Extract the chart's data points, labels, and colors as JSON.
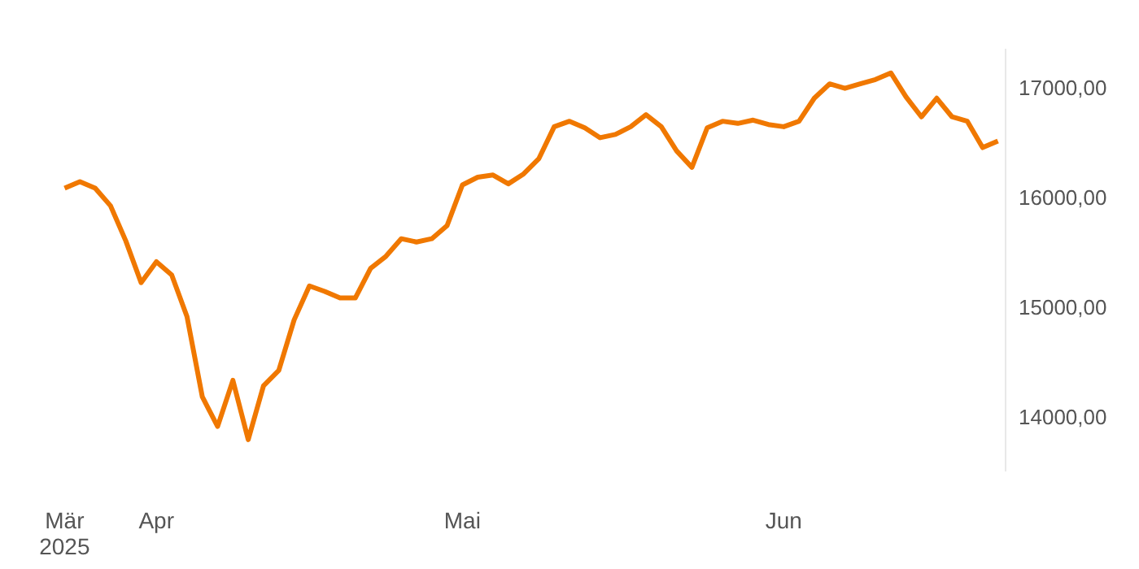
{
  "chart_data": {
    "type": "line",
    "categories": [
      "Mär 2025",
      null,
      null,
      null,
      null,
      null,
      "Apr",
      null,
      null,
      null,
      null,
      null,
      null,
      null,
      null,
      null,
      null,
      null,
      null,
      null,
      null,
      null,
      null,
      null,
      null,
      null,
      "Mai",
      null,
      null,
      null,
      null,
      null,
      null,
      null,
      null,
      null,
      null,
      null,
      null,
      null,
      null,
      null,
      null,
      null,
      null,
      null,
      null,
      "Jun",
      null,
      null,
      null,
      null,
      null,
      null,
      null,
      null,
      null,
      null,
      null,
      null,
      null,
      null
    ],
    "series": [
      {
        "color": "#f07800",
        "values": [
          16080,
          16140,
          16080,
          15920,
          15600,
          15220,
          15410,
          15290,
          14910,
          14180,
          13910,
          14330,
          13790,
          14280,
          14420,
          14880,
          15190,
          15140,
          15080,
          15080,
          15350,
          15460,
          15620,
          15590,
          15620,
          15740,
          16110,
          16180,
          16200,
          16120,
          16210,
          16350,
          16640,
          16690,
          16630,
          16540,
          16570,
          16640,
          16750,
          16640,
          16420,
          16270,
          16630,
          16690,
          16670,
          16700,
          16660,
          16640,
          16690,
          16900,
          17030,
          16990,
          17030,
          17070,
          17130,
          16910,
          16730,
          16900,
          16730,
          16690,
          16450,
          16510
        ]
      }
    ],
    "ylim": [
      13500,
      17350
    ],
    "yticks": [
      {
        "value": 14000,
        "label": "14000,00"
      },
      {
        "value": 15000,
        "label": "15000,00"
      },
      {
        "value": 16000,
        "label": "16000,00"
      },
      {
        "value": 17000,
        "label": "17000,00"
      }
    ],
    "grid": false,
    "legend": false,
    "marker": "none",
    "line_style": "solid"
  }
}
